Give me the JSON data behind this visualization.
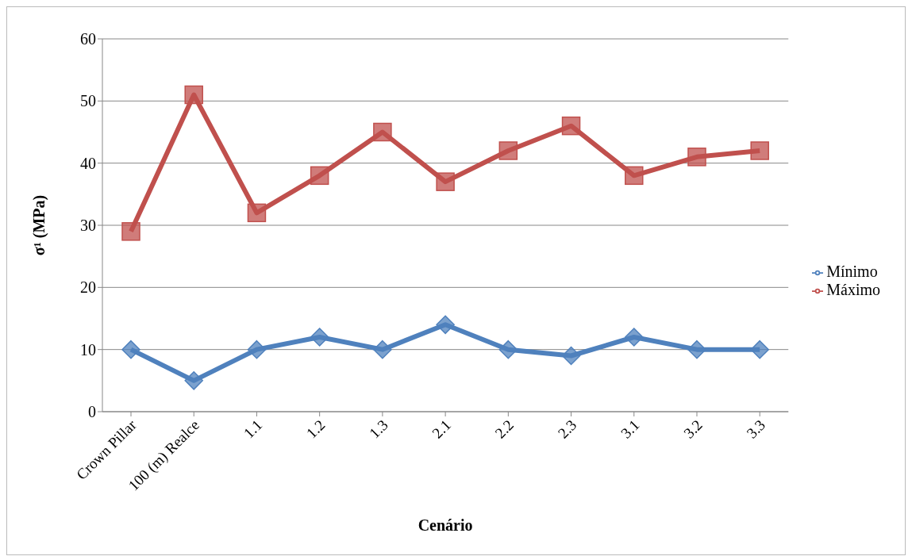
{
  "chart_data": {
    "type": "line",
    "xlabel": "Cenário",
    "ylabel": "σ¹ (MPa)",
    "categories": [
      "Crown Pillar",
      "100 (m) Realce",
      "1.1",
      "1.2",
      "1.3",
      "2.1",
      "2.2",
      "2.3",
      "3.1",
      "3.2",
      "3.3"
    ],
    "series": [
      {
        "name": "Mínimo",
        "color": "#4f81bd",
        "marker": "diamond",
        "values": [
          10,
          5,
          10,
          12,
          10,
          14,
          10,
          9,
          12,
          10,
          10
        ]
      },
      {
        "name": "Máximo",
        "color": "#c0504d",
        "marker": "square",
        "values": [
          29,
          51,
          32,
          38,
          45,
          37,
          42,
          46,
          38,
          41,
          42
        ]
      }
    ],
    "ylim": [
      0,
      60
    ],
    "yticks": [
      0,
      10,
      20,
      30,
      40,
      50,
      60
    ],
    "grid": "y",
    "legend": "right",
    "line_style": "solid"
  }
}
